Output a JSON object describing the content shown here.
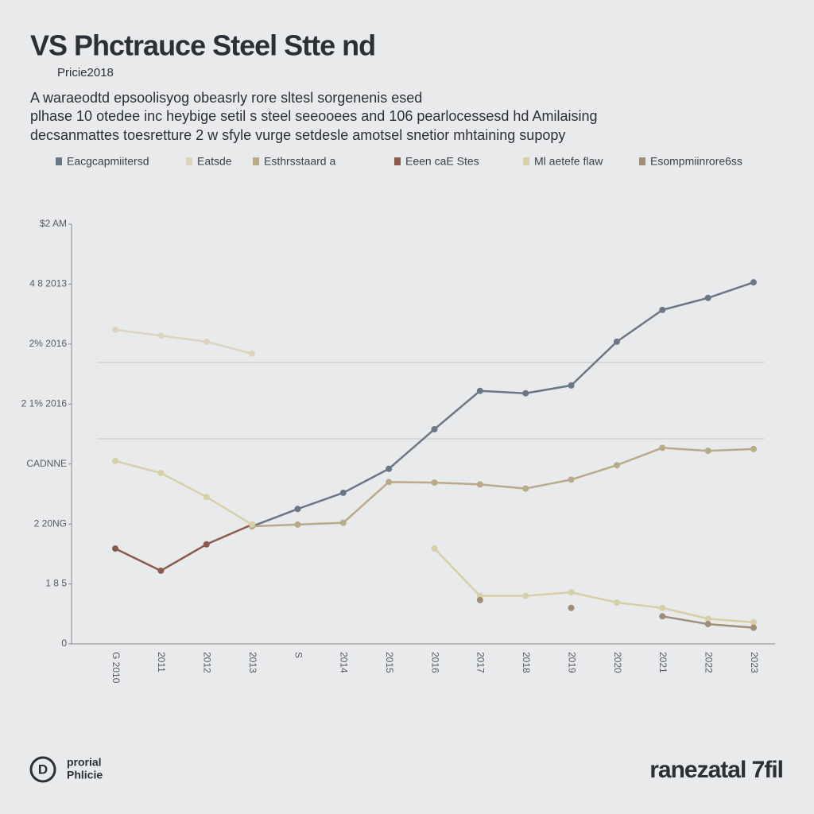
{
  "chart_data": {
    "type": "line",
    "title": "VS Phctrauce Steel Stte  nd",
    "subtitle": "Pricie2018",
    "description": [
      "A waraeodtd epsoolisyog obeasrly rore sltesl sorgenenis esed",
      "plhase 10 otedee inc heybige setil s steel seeooees and 106 pearlocessesd hd Amilaising",
      "decsanmattes toesretture 2 w sfyle vurge setdesle amotsel snetior mhtaining supopy"
    ],
    "categories": [
      "G 2010",
      "2011",
      "2012",
      "2013",
      "S",
      "2014",
      "2015",
      "2016",
      "2017",
      "2018",
      "2019",
      "2020",
      "2021",
      "2022",
      "2023"
    ],
    "series": [
      {
        "name": "Eacgcapmiitersd",
        "color": "#6b7686",
        "values": [
          null,
          null,
          null,
          1.96,
          2.25,
          2.52,
          2.92,
          3.58,
          4.22,
          4.18,
          4.31,
          5.04,
          5.57,
          5.77,
          6.03
        ]
      },
      {
        "name": "Eatsde",
        "color": "#dcd4bd",
        "values": [
          5.24,
          5.14,
          5.04,
          4.84,
          null,
          null,
          null,
          null,
          null,
          null,
          null,
          null,
          null,
          null,
          null
        ]
      },
      {
        "name": "Esthrsstaard a",
        "color": "#b9ab8a",
        "values": [
          null,
          null,
          null,
          1.96,
          1.99,
          2.02,
          2.7,
          2.69,
          2.66,
          2.59,
          2.74,
          2.98,
          3.27,
          3.22,
          3.25
        ]
      },
      {
        "name": "Eeen caE Stes",
        "color": "#8b5a4a",
        "values": [
          1.59,
          1.22,
          1.66,
          1.99,
          null,
          null,
          null,
          null,
          null,
          null,
          null,
          null,
          null,
          null,
          null
        ]
      },
      {
        "name": "Ml aetefe flaw",
        "color": "#d7cfa6",
        "values": [
          3.05,
          2.85,
          2.45,
          1.99,
          null,
          null,
          null,
          1.59,
          0.8,
          0.8,
          0.86,
          0.69,
          0.6,
          0.42,
          0.36
        ]
      },
      {
        "name": "Esompmiinrore6ss",
        "color": "#a08d78",
        "values": [
          null,
          null,
          null,
          null,
          null,
          null,
          null,
          null,
          0.73,
          null,
          0.6,
          null,
          0.46,
          0.33,
          0.27
        ]
      }
    ],
    "ylim": [
      0,
      7
    ],
    "yticks": [
      0,
      {
        "value": 1,
        "label": "1 8 5"
      },
      {
        "value": 2,
        "label": "2 20NG"
      },
      {
        "value": 3,
        "label": "CADNNE"
      },
      {
        "value": 4,
        "label": "2 1% 2016"
      },
      {
        "value": 5,
        "label": "2% 2016"
      },
      {
        "value": 6,
        "label": "4 8 2013"
      },
      {
        "value": 7,
        "label": "$2 AM"
      }
    ],
    "footer_left": [
      "prorial",
      "Phlicie"
    ],
    "logo": "D",
    "footer_right": "ranezatal 7fil"
  }
}
